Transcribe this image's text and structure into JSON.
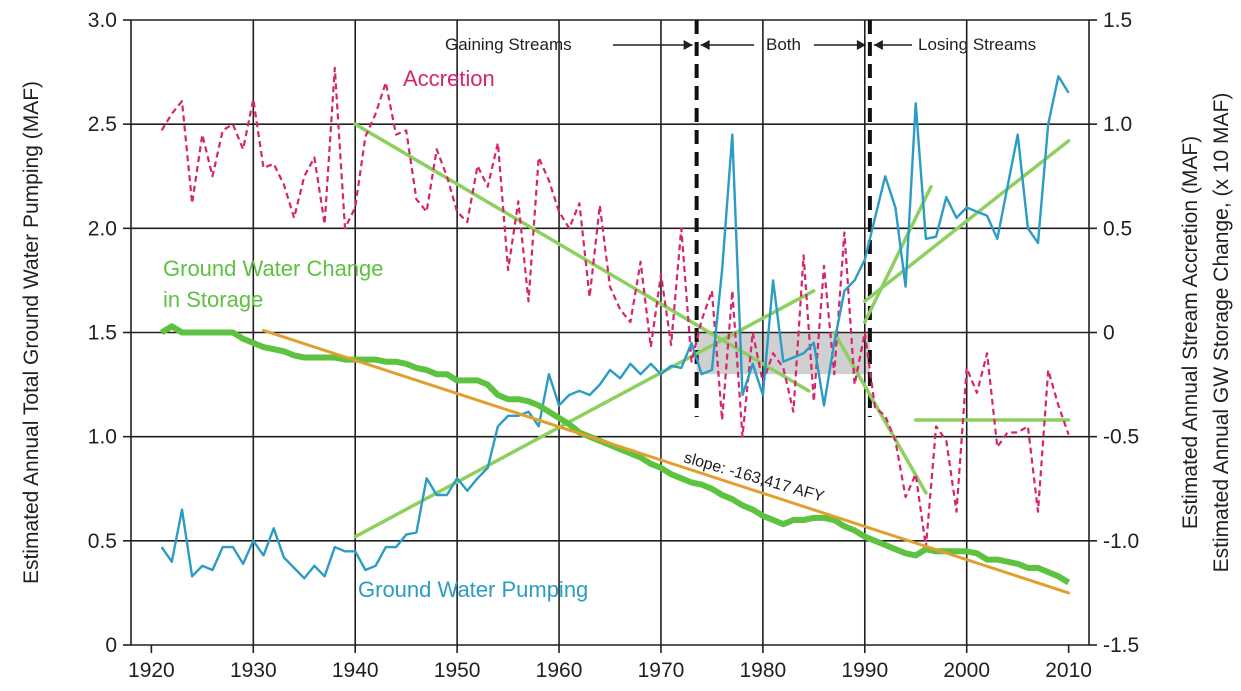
{
  "chart_data": {
    "type": "line",
    "xlabel": "",
    "ylabel_left": "Estimated Annual Total Ground Water Pumping (MAF)",
    "ylabel_right_1": "Estimated Annual Stream Accretion (MAF)",
    "ylabel_right_2": "Estimated Annual GW Storage Change, (x 10 MAF)",
    "xlim": [
      1918,
      2012
    ],
    "ylim_left": [
      0,
      3.0
    ],
    "ylim_right": [
      -1.5,
      1.5
    ],
    "x_ticks": [
      1920,
      1930,
      1940,
      1950,
      1960,
      1970,
      1980,
      1990,
      2000,
      2010
    ],
    "x_tick_labels": [
      "1920",
      "1930",
      "1940",
      "1950",
      "1960",
      "1970",
      "1980",
      "1990",
      "2000",
      "2010"
    ],
    "y_left_ticks": [
      0,
      0.5,
      1.0,
      1.5,
      2.0,
      2.5,
      3.0
    ],
    "y_left_tick_labels": [
      "0",
      "0.5",
      "1.0",
      "1.5",
      "2.0",
      "2.5",
      "3.0"
    ],
    "y_right_ticks": [
      -1.5,
      -1.0,
      -0.5,
      0,
      0.5,
      1.0,
      1.5
    ],
    "y_right_tick_labels": [
      "-1.5",
      "-1.0",
      "-0.5",
      "0",
      "0.5",
      "1.0",
      "1.5"
    ],
    "grid": true,
    "colors": {
      "accretion": "#d6246e",
      "pumping": "#2b9cc4",
      "storage": "#5cc240",
      "trend": "#8dd060",
      "slope_line": "#e0a030",
      "shade": "#d0d0d0",
      "grid": "#231f20"
    },
    "labels": {
      "accretion": "Accretion",
      "storage_line1": "Ground Water Change",
      "storage_line2": "in Storage",
      "pumping": "Ground Water Pumping",
      "slope": "slope: -163,417 AFY",
      "gaining": "Gaining Streams",
      "both": "Both",
      "losing": "Losing Streams"
    },
    "period_boundaries": [
      1973.5,
      1990.5
    ],
    "shaded_region": {
      "x": [
        1973.5,
        1990.5
      ],
      "y_left": [
        1.3,
        1.5
      ]
    },
    "series": [
      {
        "name": "Accretion",
        "axis": "right",
        "style": "dashed",
        "x": [
          1921,
          1922,
          1923,
          1924,
          1925,
          1926,
          1927,
          1928,
          1929,
          1930,
          1931,
          1932,
          1933,
          1934,
          1935,
          1936,
          1937,
          1938,
          1939,
          1940,
          1941,
          1942,
          1943,
          1944,
          1945,
          1946,
          1947,
          1948,
          1949,
          1950,
          1951,
          1952,
          1953,
          1954,
          1955,
          1956,
          1957,
          1958,
          1959,
          1960,
          1961,
          1962,
          1963,
          1964,
          1965,
          1966,
          1967,
          1968,
          1969,
          1970,
          1971,
          1972,
          1973,
          1974,
          1975,
          1976,
          1977,
          1978,
          1979,
          1980,
          1981,
          1982,
          1983,
          1984,
          1985,
          1986,
          1987,
          1988,
          1989,
          1990,
          1991,
          1992,
          1993,
          1994,
          1995,
          1996,
          1997,
          1998,
          1999,
          2000,
          2001,
          2002,
          2003,
          2004,
          2005,
          2006,
          2007,
          2008,
          2009,
          2010
        ],
        "y": [
          0.97,
          1.05,
          1.11,
          0.62,
          0.95,
          0.75,
          0.97,
          1.0,
          0.88,
          1.12,
          0.79,
          0.81,
          0.71,
          0.55,
          0.75,
          0.84,
          0.52,
          1.27,
          0.5,
          0.6,
          0.94,
          1.05,
          1.2,
          0.95,
          0.97,
          0.64,
          0.58,
          0.88,
          0.75,
          0.58,
          0.53,
          0.8,
          0.7,
          0.91,
          0.3,
          0.63,
          0.15,
          0.84,
          0.73,
          0.58,
          0.5,
          0.62,
          0.17,
          0.61,
          0.22,
          0.11,
          0.05,
          0.34,
          -0.07,
          0.28,
          -0.06,
          0.5,
          -0.14,
          0.06,
          0.2,
          -0.42,
          0.2,
          -0.5,
          0.0,
          -0.24,
          -0.1,
          -0.17,
          -0.38,
          0.37,
          -0.33,
          0.32,
          -0.2,
          0.48,
          -0.25,
          0.0,
          -0.36,
          -0.4,
          -0.52,
          -0.79,
          -0.68,
          -1.03,
          -0.45,
          -0.52,
          -0.86,
          -0.17,
          -0.29,
          -0.1,
          -0.55,
          -0.48,
          -0.48,
          -0.45,
          -0.86,
          -0.18,
          -0.35,
          -0.49
        ]
      },
      {
        "name": "Ground Water Pumping",
        "axis": "left",
        "style": "solid",
        "x": [
          1921,
          1922,
          1923,
          1924,
          1925,
          1926,
          1927,
          1928,
          1929,
          1930,
          1931,
          1932,
          1933,
          1934,
          1935,
          1936,
          1937,
          1938,
          1939,
          1940,
          1941,
          1942,
          1943,
          1944,
          1945,
          1946,
          1947,
          1948,
          1949,
          1950,
          1951,
          1952,
          1953,
          1954,
          1955,
          1956,
          1957,
          1958,
          1959,
          1960,
          1961,
          1962,
          1963,
          1964,
          1965,
          1966,
          1967,
          1968,
          1969,
          1970,
          1971,
          1972,
          1973,
          1974,
          1975,
          1976,
          1977,
          1978,
          1979,
          1980,
          1981,
          1982,
          1983,
          1984,
          1985,
          1986,
          1987,
          1988,
          1989,
          1990,
          1991,
          1992,
          1993,
          1994,
          1995,
          1996,
          1997,
          1998,
          1999,
          2000,
          2001,
          2002,
          2003,
          2004,
          2005,
          2006,
          2007,
          2008,
          2009,
          2010
        ],
        "y": [
          0.47,
          0.4,
          0.65,
          0.33,
          0.38,
          0.36,
          0.47,
          0.47,
          0.39,
          0.5,
          0.43,
          0.56,
          0.42,
          0.37,
          0.32,
          0.38,
          0.33,
          0.47,
          0.45,
          0.45,
          0.36,
          0.38,
          0.47,
          0.47,
          0.53,
          0.54,
          0.8,
          0.72,
          0.72,
          0.8,
          0.74,
          0.8,
          0.85,
          1.05,
          1.1,
          1.1,
          1.12,
          1.05,
          1.3,
          1.15,
          1.2,
          1.22,
          1.2,
          1.25,
          1.32,
          1.28,
          1.35,
          1.3,
          1.35,
          1.3,
          1.34,
          1.33,
          1.45,
          1.3,
          1.32,
          1.8,
          2.45,
          1.2,
          1.35,
          1.2,
          1.75,
          1.36,
          1.38,
          1.4,
          1.45,
          1.15,
          1.45,
          1.7,
          1.75,
          1.85,
          2.05,
          2.25,
          2.1,
          1.72,
          2.6,
          1.95,
          1.96,
          2.15,
          2.05,
          2.1,
          2.08,
          2.06,
          1.95,
          2.2,
          2.45,
          2.0,
          1.93,
          2.5,
          2.73,
          2.65
        ]
      },
      {
        "name": "Ground Water Change in Storage",
        "axis": "left",
        "style": "thick",
        "x": [
          1921,
          1922,
          1923,
          1924,
          1925,
          1926,
          1927,
          1928,
          1929,
          1930,
          1931,
          1932,
          1933,
          1934,
          1935,
          1936,
          1937,
          1938,
          1939,
          1940,
          1941,
          1942,
          1943,
          1944,
          1945,
          1946,
          1947,
          1948,
          1949,
          1950,
          1951,
          1952,
          1953,
          1954,
          1955,
          1956,
          1957,
          1958,
          1959,
          1960,
          1961,
          1962,
          1963,
          1964,
          1965,
          1966,
          1967,
          1968,
          1969,
          1970,
          1971,
          1972,
          1973,
          1974,
          1975,
          1976,
          1977,
          1978,
          1979,
          1980,
          1981,
          1982,
          1983,
          1984,
          1985,
          1986,
          1987,
          1988,
          1989,
          1990,
          1991,
          1992,
          1993,
          1994,
          1995,
          1996,
          1997,
          1998,
          1999,
          2000,
          2001,
          2002,
          2003,
          2004,
          2005,
          2006,
          2007,
          2008,
          2009,
          2010
        ],
        "y": [
          1.5,
          1.53,
          1.5,
          1.5,
          1.5,
          1.5,
          1.5,
          1.5,
          1.47,
          1.45,
          1.43,
          1.42,
          1.41,
          1.39,
          1.38,
          1.38,
          1.38,
          1.38,
          1.37,
          1.37,
          1.37,
          1.37,
          1.36,
          1.36,
          1.35,
          1.33,
          1.32,
          1.3,
          1.3,
          1.27,
          1.27,
          1.27,
          1.25,
          1.2,
          1.18,
          1.18,
          1.17,
          1.15,
          1.12,
          1.09,
          1.06,
          1.02,
          1.0,
          0.98,
          0.96,
          0.94,
          0.92,
          0.9,
          0.87,
          0.85,
          0.82,
          0.8,
          0.78,
          0.77,
          0.75,
          0.72,
          0.7,
          0.67,
          0.65,
          0.62,
          0.6,
          0.58,
          0.6,
          0.6,
          0.61,
          0.61,
          0.6,
          0.57,
          0.55,
          0.52,
          0.5,
          0.48,
          0.46,
          0.44,
          0.43,
          0.46,
          0.45,
          0.45,
          0.45,
          0.45,
          0.44,
          0.41,
          0.41,
          0.4,
          0.39,
          0.37,
          0.37,
          0.35,
          0.33,
          0.3
        ]
      }
    ],
    "trend_lines": [
      {
        "color": "trend",
        "x": [
          1940,
          1984.5
        ],
        "y": [
          2.5,
          1.22
        ]
      },
      {
        "color": "trend",
        "x": [
          1940,
          1985
        ],
        "y": [
          0.52,
          1.7
        ]
      },
      {
        "color": "trend",
        "x": [
          1987,
          1996
        ],
        "y": [
          1.5,
          0.73
        ]
      },
      {
        "color": "trend",
        "x": [
          1990,
          1996.5
        ],
        "y": [
          1.55,
          2.2
        ]
      },
      {
        "color": "trend",
        "x": [
          1990,
          2010
        ],
        "y": [
          1.65,
          2.42
        ]
      },
      {
        "color": "trend",
        "x": [
          1995,
          2010
        ],
        "y": [
          1.08,
          1.08
        ]
      },
      {
        "color": "slope_line",
        "x": [
          1931,
          2010
        ],
        "y": [
          1.51,
          0.25
        ]
      }
    ]
  }
}
